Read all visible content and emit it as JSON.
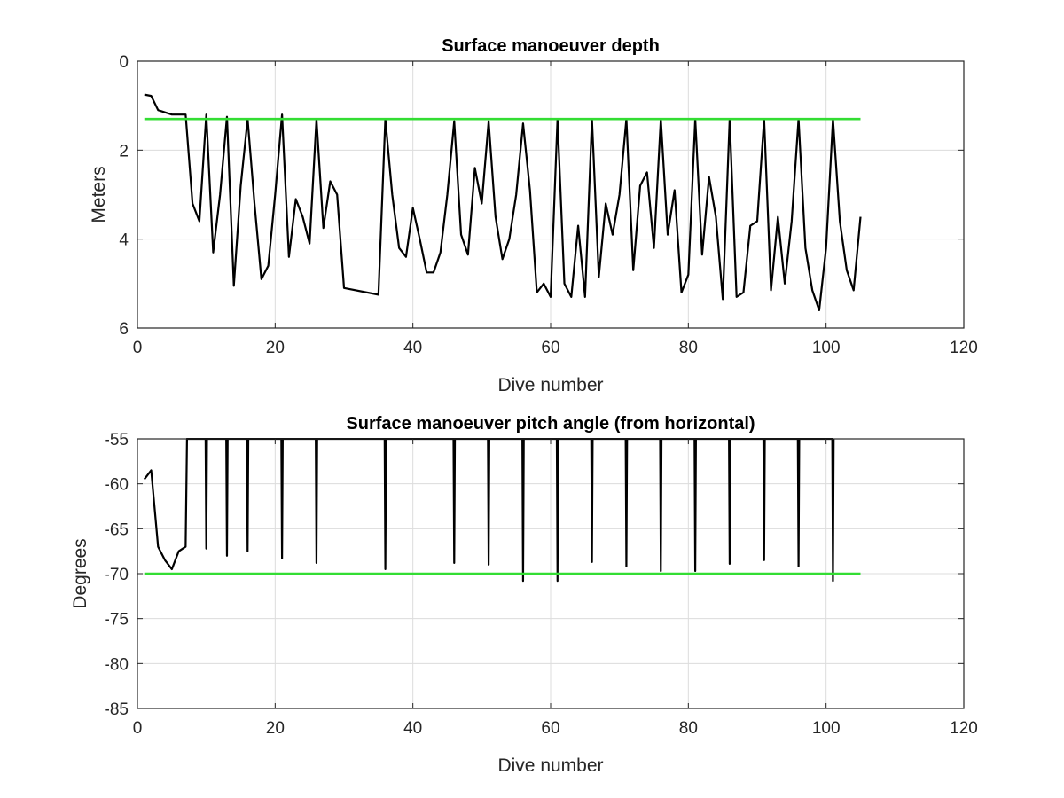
{
  "chart_data": [
    {
      "type": "line",
      "title": "Surface manoeuver depth",
      "xlabel": "Dive number",
      "ylabel": "Meters",
      "xlim": [
        0,
        120
      ],
      "ylim": [
        0,
        6
      ],
      "y_reversed": true,
      "grid": true,
      "xticks": [
        0,
        20,
        40,
        60,
        80,
        100,
        120
      ],
      "yticks": [
        0,
        2,
        4,
        6
      ],
      "series": [
        {
          "color": "#000000",
          "x": [
            1,
            2,
            3,
            4,
            5,
            6,
            7,
            8,
            9,
            10,
            11,
            12,
            13,
            14,
            15,
            16,
            17,
            18,
            19,
            20,
            21,
            22,
            23,
            24,
            25,
            26,
            27,
            28,
            29,
            30,
            35,
            36,
            37,
            38,
            39,
            40,
            41,
            42,
            43,
            44,
            45,
            46,
            47,
            48,
            49,
            50,
            51,
            52,
            53,
            54,
            55,
            56,
            57,
            58,
            59,
            60,
            61,
            62,
            63,
            64,
            65,
            66,
            67,
            68,
            69,
            70,
            71,
            72,
            73,
            74,
            75,
            76,
            77,
            78,
            79,
            80,
            81,
            82,
            83,
            84,
            85,
            86,
            87,
            88,
            89,
            90,
            91,
            92,
            93,
            94,
            95,
            96,
            97,
            98,
            99,
            100,
            101,
            102,
            103,
            104,
            105
          ],
          "values": [
            0.75,
            0.78,
            1.1,
            1.15,
            1.2,
            1.2,
            1.2,
            3.2,
            3.6,
            1.2,
            4.3,
            3.0,
            1.25,
            5.05,
            2.8,
            1.3,
            3.2,
            4.9,
            4.6,
            3.0,
            1.2,
            4.4,
            3.1,
            3.5,
            4.1,
            1.3,
            3.75,
            2.7,
            3.0,
            5.1,
            5.25,
            1.3,
            3.0,
            4.2,
            4.4,
            3.3,
            4.0,
            4.75,
            4.75,
            4.3,
            3.0,
            1.35,
            3.9,
            4.35,
            2.4,
            3.2,
            1.35,
            3.5,
            4.45,
            4.0,
            3.0,
            1.4,
            2.9,
            5.2,
            5.0,
            5.3,
            1.3,
            5.0,
            5.3,
            3.7,
            5.3,
            1.3,
            4.85,
            3.2,
            3.9,
            3.0,
            1.3,
            4.7,
            2.8,
            2.5,
            4.2,
            1.3,
            3.9,
            2.9,
            5.2,
            4.8,
            1.3,
            4.35,
            2.6,
            3.5,
            5.35,
            1.3,
            5.3,
            5.2,
            3.7,
            3.6,
            1.3,
            5.15,
            3.5,
            5.0,
            3.6,
            1.3,
            4.2,
            5.15,
            5.6,
            4.2,
            1.3,
            3.6,
            4.7,
            5.15,
            3.5
          ]
        },
        {
          "color": "#33dd33",
          "x": [
            1,
            105
          ],
          "values": [
            1.3,
            1.3
          ]
        }
      ]
    },
    {
      "type": "line",
      "title": "Surface manoeuver pitch angle (from horizontal)",
      "xlabel": "Dive number",
      "ylabel": "Degrees",
      "xlim": [
        0,
        120
      ],
      "ylim": [
        -85,
        -55
      ],
      "grid": true,
      "xticks": [
        0,
        20,
        40,
        60,
        80,
        100,
        120
      ],
      "yticks": [
        -55,
        -60,
        -65,
        -70,
        -75,
        -80,
        -85
      ],
      "series": [
        {
          "color": "#000000",
          "x": [
            1,
            2,
            3,
            4,
            5,
            6,
            7,
            7.2,
            9.9,
            10,
            10.1,
            12.9,
            13,
            13.1,
            15.9,
            16,
            16.1,
            20.9,
            21,
            21.1,
            25.9,
            26,
            26.1,
            35.9,
            36,
            36.1,
            45.9,
            46,
            46.1,
            50.9,
            51,
            51.1,
            55.9,
            56,
            56.1,
            60.9,
            61,
            61.1,
            65.9,
            66,
            66.1,
            70.9,
            71,
            71.1,
            75.9,
            76,
            76.1,
            80.9,
            81,
            81.1,
            85.9,
            86,
            86.1,
            90.9,
            91,
            91.1,
            95.9,
            96,
            96.1,
            100.9,
            101,
            101.1
          ],
          "values": [
            -59.5,
            -58.5,
            -67,
            -68.5,
            -69.5,
            -67.5,
            -67,
            -55,
            -55,
            -67.2,
            -55,
            -55,
            -68,
            -55,
            -55,
            -67.5,
            -55,
            -55,
            -68.3,
            -55,
            -55,
            -68.8,
            -55,
            -55,
            -69.5,
            -55,
            -55,
            -68.8,
            -55,
            -55,
            -69,
            -55,
            -55,
            -70.8,
            -55,
            -55,
            -70.8,
            -55,
            -55,
            -68.7,
            -55,
            -55,
            -69.2,
            -55,
            -55,
            -69.7,
            -55,
            -55,
            -69.7,
            -55,
            -55,
            -68.9,
            -55,
            -55,
            -68.5,
            -55,
            -55,
            -69.2,
            -55,
            -55,
            -70.8,
            -55
          ]
        },
        {
          "color": "#33dd33",
          "x": [
            1,
            105
          ],
          "values": [
            -70,
            -70
          ]
        }
      ]
    }
  ]
}
